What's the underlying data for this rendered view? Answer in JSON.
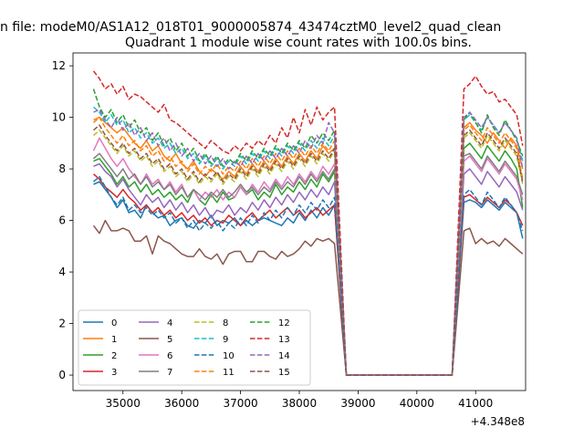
{
  "chart_data": {
    "type": "line",
    "suptitle": "n file: modeM0/AS1A12_018T01_9000005874_43474cztM0_level2_quad_clean",
    "title": "Quadrant 1 module wise count rates with 100.0s bins.",
    "xlabel": "",
    "ylabel": "",
    "x_offset_label": "+4.348e8",
    "xlim": [
      34150,
      41850
    ],
    "ylim": [
      -0.6,
      12.5
    ],
    "xticks": [
      35000,
      36000,
      37000,
      38000,
      39000,
      40000,
      41000
    ],
    "yticks": [
      0,
      2,
      4,
      6,
      8,
      10,
      12
    ],
    "grid": false,
    "legend_position": "lower-left",
    "legend_columns": 4,
    "gap": {
      "start_x": 38800,
      "end_x": 40600,
      "drop_from_x": 38600,
      "recover_x": 40800
    },
    "x_start": 34500,
    "x_step": 100,
    "series": [
      {
        "name": "0",
        "color": "#1f77b4",
        "dash": "solid",
        "seg1": [
          7.4,
          7.5,
          7.2,
          6.9,
          6.5,
          6.8,
          6.3,
          6.4,
          6.1,
          6.6,
          6.3,
          6.1,
          6.2,
          5.8,
          6.0,
          6.1,
          5.8,
          5.7,
          6.0,
          5.9,
          6.2,
          5.8,
          6.0,
          5.9,
          6.1,
          5.8,
          6.0,
          5.8,
          6.0,
          6.1,
          6.0,
          5.9,
          5.8,
          6.1,
          5.9,
          6.3,
          6.0,
          6.4,
          6.1,
          6.5,
          6.2,
          6.6
        ],
        "seg2": [
          6.7,
          6.8,
          6.7,
          6.5,
          6.8,
          6.6,
          6.4,
          6.7,
          6.5,
          6.3,
          5.3
        ]
      },
      {
        "name": "1",
        "color": "#ff7f0e",
        "dash": "solid",
        "seg1": [
          9.9,
          10.0,
          9.8,
          9.6,
          9.4,
          9.6,
          9.3,
          9.0,
          8.8,
          9.1,
          8.7,
          8.9,
          8.5,
          8.3,
          8.6,
          8.2,
          8.0,
          8.3,
          7.9,
          7.7,
          8.0,
          7.8,
          7.6,
          7.9,
          7.7,
          8.1,
          7.8,
          8.2,
          7.9,
          8.3,
          8.0,
          8.4,
          8.1,
          8.5,
          8.2,
          8.6,
          8.3,
          8.7,
          8.4,
          8.9,
          8.6,
          8.8
        ],
        "seg2": [
          9.6,
          9.8,
          9.5,
          9.3,
          9.0,
          9.4,
          9.1,
          8.8,
          9.2,
          8.9,
          8.0
        ]
      },
      {
        "name": "2",
        "color": "#2ca02c",
        "dash": "solid",
        "seg1": [
          8.3,
          8.4,
          8.1,
          7.8,
          7.4,
          7.7,
          7.3,
          7.5,
          7.1,
          7.4,
          7.0,
          7.2,
          6.9,
          7.1,
          6.8,
          7.0,
          6.7,
          7.2,
          6.8,
          6.6,
          7.0,
          6.7,
          7.1,
          6.8,
          6.9,
          7.3,
          7.0,
          7.2,
          6.8,
          7.1,
          6.9,
          7.4,
          7.0,
          7.3,
          7.1,
          7.5,
          7.2,
          7.6,
          7.3,
          7.8,
          7.5,
          7.9
        ],
        "seg2": [
          8.8,
          9.0,
          8.7,
          8.4,
          8.9,
          8.6,
          8.3,
          8.7,
          8.4,
          8.0,
          6.5
        ]
      },
      {
        "name": "3",
        "color": "#d62728",
        "dash": "solid",
        "seg1": [
          7.8,
          7.6,
          7.3,
          7.1,
          6.9,
          7.2,
          6.9,
          6.7,
          6.4,
          6.6,
          6.3,
          6.5,
          6.2,
          6.4,
          6.1,
          6.3,
          6.0,
          6.2,
          5.9,
          6.1,
          5.8,
          6.0,
          5.9,
          6.2,
          6.0,
          5.8,
          6.1,
          6.3,
          6.0,
          6.2,
          6.4,
          6.1,
          6.3,
          6.5,
          6.2,
          6.4,
          6.1,
          6.3,
          6.5,
          6.2,
          6.4,
          6.6
        ],
        "seg2": [
          6.9,
          7.0,
          6.8,
          6.6,
          6.9,
          6.7,
          6.5,
          6.8,
          6.6,
          6.3,
          5.8
        ]
      },
      {
        "name": "4",
        "color": "#9467bd",
        "dash": "solid",
        "seg1": [
          8.1,
          8.2,
          7.9,
          7.7,
          7.3,
          7.6,
          7.2,
          6.9,
          6.6,
          7.0,
          6.7,
          6.9,
          6.5,
          6.8,
          6.4,
          6.7,
          6.3,
          6.6,
          6.2,
          6.5,
          6.1,
          6.4,
          6.3,
          6.6,
          6.2,
          6.5,
          6.3,
          6.7,
          6.4,
          6.8,
          6.5,
          6.9,
          6.6,
          7.0,
          6.7,
          7.1,
          6.8,
          7.2,
          6.9,
          7.3,
          7.0,
          7.5
        ],
        "seg2": [
          7.8,
          8.0,
          7.7,
          7.4,
          7.9,
          7.6,
          7.3,
          7.7,
          7.4,
          7.1,
          6.4
        ]
      },
      {
        "name": "5",
        "color": "#8c564b",
        "dash": "solid",
        "seg1": [
          5.8,
          5.5,
          6.0,
          5.6,
          5.6,
          5.7,
          5.6,
          5.2,
          5.2,
          5.4,
          4.7,
          5.4,
          5.2,
          5.1,
          4.9,
          4.7,
          4.6,
          4.6,
          4.9,
          4.6,
          4.5,
          4.7,
          4.3,
          4.7,
          4.8,
          4.8,
          4.4,
          4.4,
          4.8,
          4.8,
          4.6,
          4.5,
          4.8,
          4.6,
          4.7,
          4.9,
          5.2,
          5.0,
          5.3,
          5.2,
          5.3,
          5.1
        ],
        "seg2": [
          5.6,
          5.7,
          5.1,
          5.3,
          5.1,
          5.2,
          5.0,
          5.3,
          5.1,
          4.9,
          4.7
        ]
      },
      {
        "name": "6",
        "color": "#e377c2",
        "dash": "solid",
        "seg1": [
          8.7,
          9.2,
          8.8,
          8.4,
          8.1,
          8.4,
          8.0,
          7.7,
          7.4,
          7.8,
          7.4,
          7.6,
          7.2,
          7.5,
          7.1,
          7.4,
          6.9,
          7.2,
          6.8,
          7.1,
          6.9,
          7.2,
          6.8,
          7.1,
          6.9,
          7.3,
          7.0,
          7.4,
          7.1,
          7.5,
          7.2,
          7.6,
          7.3,
          7.7,
          7.4,
          7.8,
          7.5,
          7.9,
          7.6,
          8.1,
          7.8,
          8.2
        ],
        "seg2": [
          8.3,
          8.5,
          8.2,
          7.9,
          8.4,
          8.1,
          7.8,
          8.2,
          7.9,
          7.6,
          6.8
        ]
      },
      {
        "name": "7",
        "color": "#7f7f7f",
        "dash": "solid",
        "seg1": [
          8.4,
          8.6,
          8.3,
          8.0,
          7.7,
          8.0,
          7.6,
          7.8,
          7.4,
          7.7,
          7.3,
          7.5,
          7.2,
          7.4,
          7.0,
          7.3,
          6.9,
          7.2,
          7.0,
          6.8,
          7.1,
          6.9,
          7.2,
          6.9,
          7.1,
          7.4,
          7.1,
          7.3,
          7.0,
          7.3,
          7.1,
          7.5,
          7.2,
          7.5,
          7.3,
          7.7,
          7.4,
          7.8,
          7.5,
          7.9,
          7.6,
          8.0
        ],
        "seg2": [
          8.5,
          8.6,
          8.3,
          8.0,
          8.5,
          8.2,
          7.9,
          8.3,
          8.0,
          7.7,
          7.0
        ]
      },
      {
        "name": "8",
        "color": "#bcbd22",
        "dash": "dashed",
        "seg1": [
          9.3,
          9.5,
          9.2,
          8.9,
          8.6,
          8.9,
          8.5,
          8.7,
          8.3,
          8.5,
          8.1,
          8.3,
          7.9,
          8.1,
          7.7,
          7.9,
          7.5,
          7.8,
          7.4,
          7.7,
          7.5,
          7.8,
          7.4,
          7.7,
          7.5,
          7.9,
          7.6,
          8.0,
          7.7,
          8.1,
          7.8,
          8.2,
          7.9,
          8.3,
          8.0,
          8.4,
          8.1,
          8.5,
          8.2,
          8.6,
          8.3,
          8.7
        ],
        "seg2": [
          9.2,
          9.4,
          9.1,
          8.8,
          9.3,
          9.0,
          8.7,
          9.1,
          8.8,
          8.5,
          7.4
        ]
      },
      {
        "name": "9",
        "color": "#17becf",
        "dash": "dashed",
        "seg1": [
          10.4,
          10.2,
          9.8,
          10.1,
          9.7,
          9.9,
          9.4,
          9.6,
          9.2,
          9.4,
          9.0,
          9.2,
          8.8,
          9.0,
          8.6,
          8.8,
          8.4,
          8.6,
          8.2,
          8.5,
          8.1,
          8.4,
          8.0,
          8.3,
          8.1,
          8.5,
          8.2,
          8.6,
          8.3,
          8.7,
          8.4,
          8.8,
          8.5,
          8.9,
          8.6,
          9.0,
          8.7,
          9.1,
          8.8,
          9.2,
          8.9,
          9.3
        ],
        "seg2": [
          9.9,
          10.1,
          9.8,
          9.5,
          10.0,
          9.7,
          9.4,
          9.8,
          9.5,
          9.2,
          8.3
        ]
      },
      {
        "name": "10",
        "color": "#1f77b4",
        "dash": "dashed",
        "seg1": [
          7.5,
          7.7,
          7.3,
          6.9,
          6.6,
          6.9,
          6.4,
          6.6,
          6.3,
          6.5,
          6.2,
          6.4,
          6.1,
          6.3,
          5.9,
          6.1,
          5.7,
          6.0,
          5.6,
          5.9,
          5.7,
          6.0,
          5.6,
          5.9,
          5.7,
          6.1,
          5.8,
          6.2,
          5.9,
          6.3,
          6.0,
          6.4,
          6.1,
          6.5,
          6.2,
          6.6,
          6.3,
          6.7,
          6.4,
          6.8,
          6.5,
          6.9
        ],
        "seg2": [
          7.0,
          7.2,
          6.9,
          6.6,
          7.1,
          6.8,
          6.5,
          6.9,
          6.6,
          6.3,
          5.6
        ]
      },
      {
        "name": "11",
        "color": "#ff7f0e",
        "dash": "dashed",
        "seg1": [
          9.8,
          10.0,
          9.6,
          9.3,
          9.0,
          9.3,
          8.9,
          9.1,
          8.7,
          8.9,
          8.5,
          8.7,
          8.3,
          8.5,
          8.1,
          8.3,
          7.9,
          8.2,
          7.8,
          8.1,
          7.9,
          8.2,
          7.8,
          8.1,
          7.9,
          8.3,
          8.0,
          8.4,
          8.1,
          8.5,
          8.2,
          8.6,
          8.3,
          8.7,
          8.4,
          8.8,
          8.5,
          8.9,
          8.6,
          9.0,
          8.7,
          9.1
        ],
        "seg2": [
          9.5,
          9.7,
          9.4,
          9.1,
          9.6,
          9.3,
          9.0,
          9.4,
          9.1,
          8.8,
          7.6
        ]
      },
      {
        "name": "12",
        "color": "#2ca02c",
        "dash": "dashed",
        "seg1": [
          11.1,
          10.4,
          10.0,
          10.3,
          9.8,
          10.1,
          9.6,
          9.9,
          9.4,
          9.6,
          9.1,
          9.4,
          8.9,
          9.2,
          8.7,
          9.0,
          8.5,
          8.8,
          8.3,
          8.6,
          8.2,
          8.5,
          8.1,
          8.4,
          8.2,
          8.6,
          8.3,
          8.7,
          8.4,
          8.8,
          8.5,
          8.9,
          8.6,
          9.0,
          8.7,
          9.1,
          8.8,
          9.3,
          9.0,
          9.4,
          9.1,
          9.5
        ],
        "seg2": [
          9.9,
          10.2,
          9.8,
          9.4,
          10.1,
          9.6,
          9.3,
          9.9,
          9.5,
          9.1,
          8.5
        ]
      },
      {
        "name": "13",
        "color": "#d62728",
        "dash": "dashed",
        "seg1": [
          11.8,
          11.5,
          11.1,
          11.3,
          10.9,
          11.2,
          10.7,
          10.9,
          10.8,
          10.6,
          10.4,
          10.2,
          10.5,
          9.9,
          9.8,
          9.6,
          9.4,
          9.2,
          9.0,
          8.8,
          9.1,
          8.9,
          8.7,
          8.6,
          8.9,
          8.7,
          9.0,
          8.8,
          9.1,
          8.9,
          9.3,
          9.0,
          9.6,
          9.2,
          10.0,
          9.4,
          10.3,
          9.7,
          10.4,
          9.9,
          10.2,
          10.4
        ],
        "seg2": [
          11.1,
          11.3,
          11.6,
          11.2,
          10.9,
          11.0,
          10.6,
          10.7,
          10.4,
          10.1,
          8.9
        ]
      },
      {
        "name": "14",
        "color": "#9467bd",
        "dash": "dashed",
        "seg1": [
          10.2,
          10.3,
          9.9,
          9.6,
          10.0,
          9.5,
          9.8,
          9.3,
          9.6,
          9.1,
          9.4,
          8.9,
          9.2,
          8.7,
          9.0,
          8.5,
          8.8,
          8.3,
          8.6,
          8.2,
          8.5,
          8.1,
          8.4,
          8.0,
          8.3,
          8.1,
          8.5,
          8.2,
          8.6,
          8.3,
          8.7,
          8.4,
          8.8,
          8.5,
          8.9,
          8.6,
          9.1,
          8.8,
          9.3,
          9.0,
          9.8,
          9.4
        ],
        "seg2": [
          10.0,
          10.2,
          9.9,
          9.6,
          10.0,
          9.7,
          9.4,
          9.8,
          9.5,
          9.2,
          8.0
        ]
      },
      {
        "name": "15",
        "color": "#8c564b",
        "dash": "dashed",
        "seg1": [
          9.5,
          9.7,
          9.3,
          9.0,
          8.7,
          9.0,
          8.6,
          8.8,
          8.4,
          8.6,
          8.2,
          8.4,
          8.0,
          8.2,
          7.8,
          8.0,
          7.6,
          7.9,
          7.5,
          7.8,
          7.6,
          7.9,
          7.5,
          7.8,
          7.6,
          8.0,
          7.7,
          8.1,
          7.8,
          8.2,
          7.9,
          8.3,
          8.0,
          8.4,
          8.1,
          8.5,
          8.2,
          8.6,
          8.3,
          8.7,
          8.4,
          8.8
        ],
        "seg2": [
          9.3,
          9.5,
          9.2,
          8.9,
          9.4,
          9.1,
          8.8,
          9.2,
          8.9,
          8.6,
          7.5
        ]
      }
    ]
  }
}
